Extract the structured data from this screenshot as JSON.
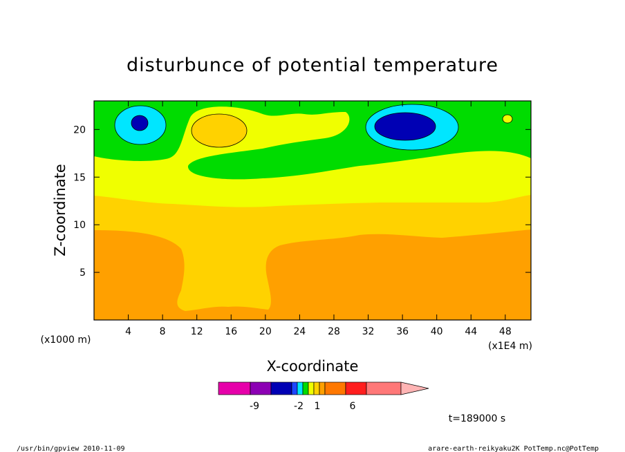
{
  "chart_data": {
    "type": "contour",
    "title": "disturbunce of potential temperature",
    "xlabel": "X-coordinate",
    "ylabel": "Z-coordinate",
    "x_units": "(x1E4 m)",
    "y_units": "(x1000 m)",
    "xlim": [
      0,
      51
    ],
    "ylim": [
      0,
      23
    ],
    "x_ticks": [
      "4",
      "8",
      "12",
      "16",
      "20",
      "24",
      "28",
      "32",
      "36",
      "40",
      "44",
      "48"
    ],
    "y_ticks": [
      "5",
      "10",
      "15",
      "20"
    ],
    "time_label": "t=189000 s",
    "colorbar": {
      "colors": [
        "#e600aa",
        "#8c00b4",
        "#0000b4",
        "#1e46ff",
        "#00e6ff",
        "#00dc00",
        "#f0ff00",
        "#ffd200",
        "#ffa000",
        "#ff7800",
        "#ff1e1e",
        "#ff7878",
        "#ffb4b4"
      ],
      "labels": [
        "-9",
        "-2",
        "1",
        "6"
      ]
    },
    "footer_left": "/usr/bin/gpview   2010-11-09",
    "footer_right": "arare-earth-reikyaku2K_PotTemp.nc@PotTemp"
  }
}
